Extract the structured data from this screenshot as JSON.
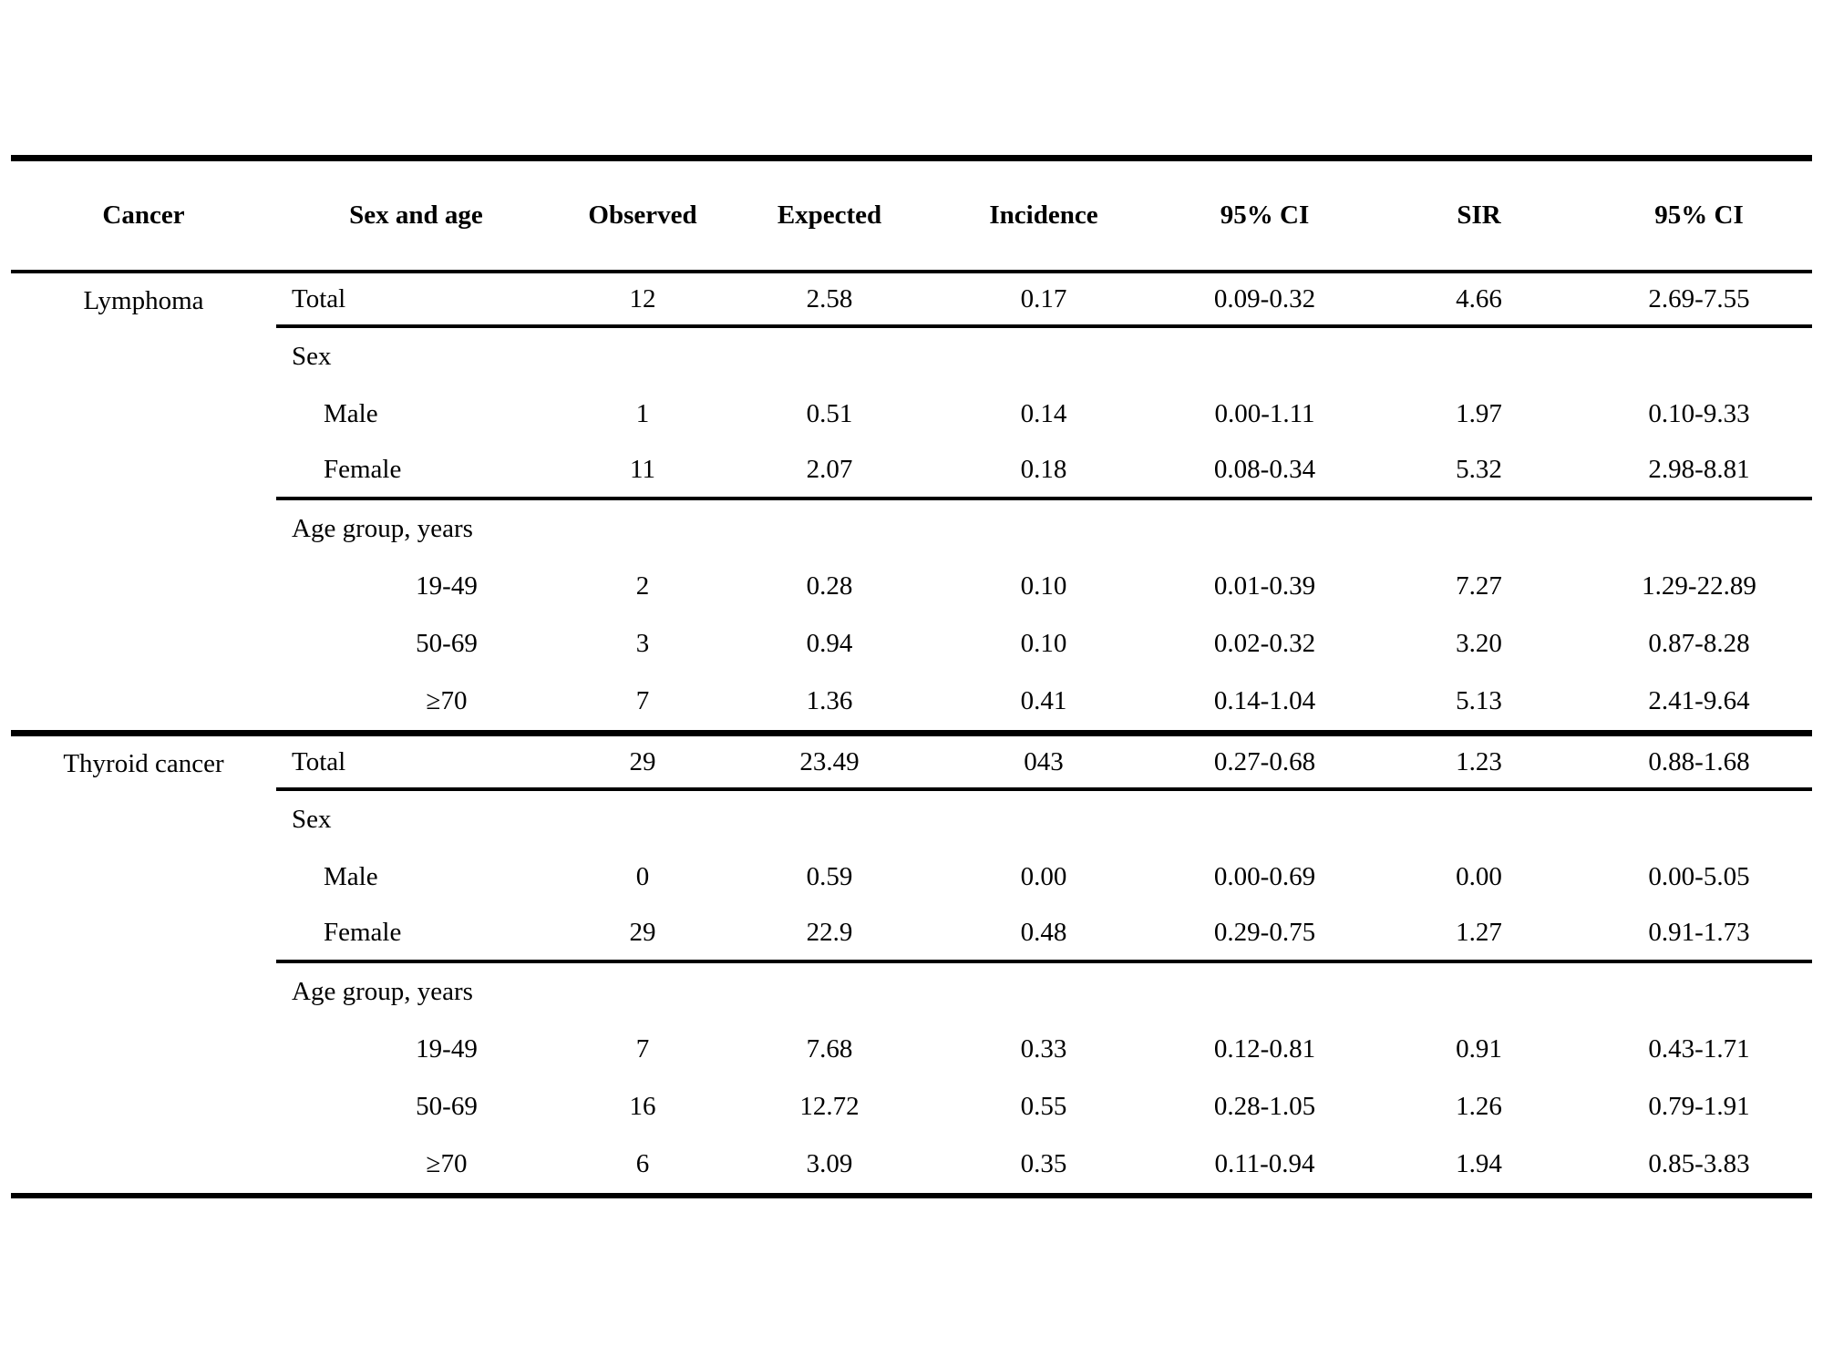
{
  "table": {
    "columns": [
      "Cancer",
      "Sex and age",
      "Observed",
      "Expected",
      "Incidence",
      "95% CI",
      "SIR",
      "95% CI"
    ],
    "sections": [
      {
        "cancer": "Lymphoma",
        "rows": [
          {
            "label": "Total",
            "indent": 0,
            "rule_below": true,
            "values": [
              "12",
              "2.58",
              "0.17",
              "0.09-0.32",
              "4.66",
              "2.69-7.55"
            ]
          },
          {
            "label": "Sex",
            "indent": 0,
            "rule_below": false,
            "values": [
              "",
              "",
              "",
              "",
              "",
              ""
            ]
          },
          {
            "label": "Male",
            "indent": 1,
            "rule_below": false,
            "values": [
              "1",
              "0.51",
              "0.14",
              "0.00-1.11",
              "1.97",
              "0.10-9.33"
            ]
          },
          {
            "label": "Female",
            "indent": 1,
            "rule_below": true,
            "values": [
              "11",
              "2.07",
              "0.18",
              "0.08-0.34",
              "5.32",
              "2.98-8.81"
            ]
          },
          {
            "label": "Age group, years",
            "indent": 0,
            "rule_below": false,
            "values": [
              "",
              "",
              "",
              "",
              "",
              ""
            ]
          },
          {
            "label": "19-49",
            "indent": 2,
            "rule_below": false,
            "values": [
              "2",
              "0.28",
              "0.10",
              "0.01-0.39",
              "7.27",
              "1.29-22.89"
            ]
          },
          {
            "label": "50-69",
            "indent": 2,
            "rule_below": false,
            "values": [
              "3",
              "0.94",
              "0.10",
              "0.02-0.32",
              "3.20",
              "0.87-8.28"
            ]
          },
          {
            "label": "≥70",
            "indent": 2,
            "rule_below": false,
            "values": [
              "7",
              "1.36",
              "0.41",
              "0.14-1.04",
              "5.13",
              "2.41-9.64"
            ]
          }
        ]
      },
      {
        "cancer": "Thyroid cancer",
        "rows": [
          {
            "label": "Total",
            "indent": 0,
            "rule_below": true,
            "values": [
              "29",
              "23.49",
              "043",
              "0.27-0.68",
              "1.23",
              "0.88-1.68"
            ]
          },
          {
            "label": "Sex",
            "indent": 0,
            "rule_below": false,
            "values": [
              "",
              "",
              "",
              "",
              "",
              ""
            ]
          },
          {
            "label": "Male",
            "indent": 1,
            "rule_below": false,
            "values": [
              "0",
              "0.59",
              "0.00",
              "0.00-0.69",
              "0.00",
              "0.00-5.05"
            ]
          },
          {
            "label": "Female",
            "indent": 1,
            "rule_below": true,
            "values": [
              "29",
              "22.9",
              "0.48",
              "0.29-0.75",
              "1.27",
              "0.91-1.73"
            ]
          },
          {
            "label": "Age group, years",
            "indent": 0,
            "rule_below": false,
            "values": [
              "",
              "",
              "",
              "",
              "",
              ""
            ]
          },
          {
            "label": "19-49",
            "indent": 2,
            "rule_below": false,
            "values": [
              "7",
              "7.68",
              "0.33",
              "0.12-0.81",
              "0.91",
              "0.43-1.71"
            ]
          },
          {
            "label": "50-69",
            "indent": 2,
            "rule_below": false,
            "values": [
              "16",
              "12.72",
              "0.55",
              "0.28-1.05",
              "1.26",
              "0.79-1.91"
            ]
          },
          {
            "label": "≥70",
            "indent": 2,
            "rule_below": false,
            "values": [
              "6",
              "3.09",
              "0.35",
              "0.11-0.94",
              "1.94",
              "0.85-3.83"
            ]
          }
        ]
      }
    ]
  }
}
